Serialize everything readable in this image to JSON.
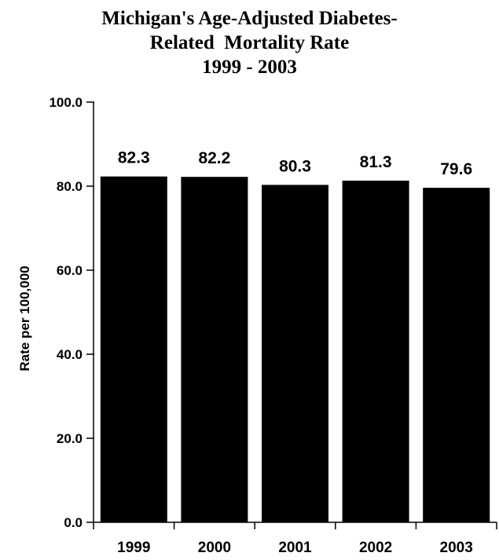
{
  "chart_data": {
    "type": "bar",
    "title_lines": [
      "Michigan's Age-Adjusted Diabetes-",
      "Related  Mortality Rate",
      "1999 - 2003"
    ],
    "xlabel": "",
    "ylabel": "Rate per 100,000",
    "categories": [
      "1999",
      "2000",
      "2001",
      "2002",
      "2003"
    ],
    "values": [
      82.3,
      82.2,
      80.3,
      81.3,
      79.6
    ],
    "data_labels": [
      "82.3",
      "82.2",
      "80.3",
      "81.3",
      "79.6"
    ],
    "ylim": [
      0,
      100
    ],
    "yticks": [
      0,
      20,
      40,
      60,
      80,
      100
    ],
    "ytick_labels": [
      "0.0",
      "20.0",
      "40.0",
      "60.0",
      "80.0",
      "100.0"
    ],
    "grid": false,
    "legend": "none",
    "colors": {
      "bar": "#000000",
      "axis": "#000000",
      "background": "#ffffff"
    }
  }
}
